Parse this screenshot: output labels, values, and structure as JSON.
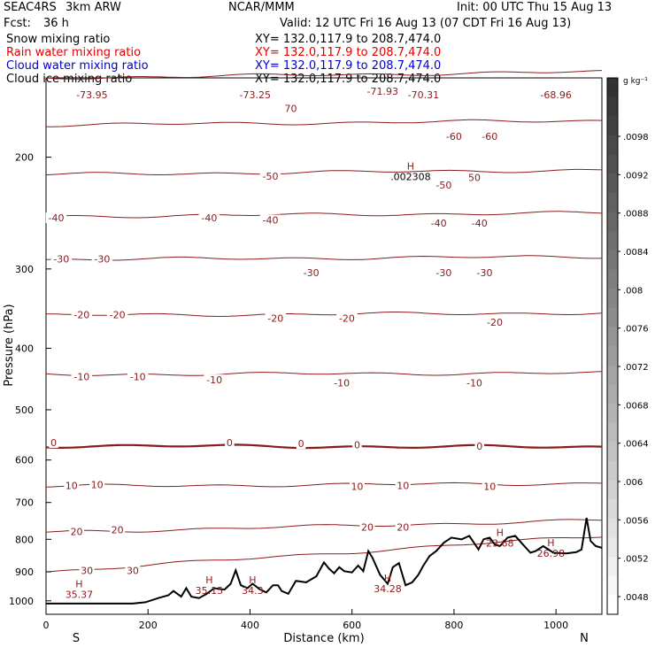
{
  "header": {
    "project": "SEAC4RS",
    "model": "3km ARW",
    "org": "NCAR/MMM",
    "init": "Init: 00 UTC Thu 15 Aug 13",
    "fcst_label": "Fcst:",
    "fcst_value": "36 h",
    "valid": "Valid: 12 UTC Fri 16 Aug 13 (07 CDT Fri 16 Aug 13)"
  },
  "fields": [
    {
      "name": "Snow mixing ratio",
      "xy": "XY= 132.0,117.9 to 208.7,474.0",
      "color": "#000000"
    },
    {
      "name": "Rain water mixing ratio",
      "xy": "XY= 132.0,117.9 to 208.7,474.0",
      "color": "#e00000"
    },
    {
      "name": "Cloud water mixing ratio",
      "xy": "XY= 132.0,117.9 to 208.7,474.0",
      "color": "#0000cc"
    },
    {
      "name": "Cloud ice mixing ratio",
      "xy": "XY= 132.0,117.9 to 208.7,474.0",
      "color": "#000000"
    }
  ],
  "chart_data": {
    "type": "cross-section contour",
    "xlabel": "Distance (km)",
    "ylabel": "Pressure (hPa)",
    "xlim": [
      0,
      1090
    ],
    "ylim": [
      1050,
      150
    ],
    "y_scale": "log",
    "x_ticks": [
      0,
      200,
      400,
      600,
      800,
      1000
    ],
    "y_ticks": [
      200,
      300,
      400,
      500,
      600,
      700,
      800,
      900,
      1000
    ],
    "x_end_labels": {
      "left": "S",
      "right": "N"
    },
    "colorbar": {
      "units": "g kg⁻¹",
      "ticks": [
        ".0098",
        ".0092",
        ".0088",
        ".0084",
        ".008",
        ".0076",
        ".0072",
        ".0068",
        ".0064",
        ".006",
        ".0056",
        ".0052",
        ".0048"
      ]
    },
    "temperature_contours": [
      {
        "value": -70,
        "p_start": 150,
        "slope": -0.02
      },
      {
        "value": -60,
        "p_start": 178,
        "slope": -0.015
      },
      {
        "value": -50,
        "p_start": 213,
        "slope": -0.015
      },
      {
        "value": -40,
        "p_start": 248,
        "slope": -0.012
      },
      {
        "value": -30,
        "p_start": 290,
        "slope": -0.01
      },
      {
        "value": -20,
        "p_start": 355,
        "slope": -0.008
      },
      {
        "value": -10,
        "p_start": 440,
        "slope": -0.005
      },
      {
        "value": 0,
        "p_start": 570,
        "slope": 0.004
      },
      {
        "value": 10,
        "p_start": 660,
        "slope": -0.01
      },
      {
        "value": 20,
        "p_start": 780,
        "slope": -0.04
      },
      {
        "value": 30,
        "p_start": 900,
        "slope": -0.12
      }
    ],
    "contour_labels": [
      {
        "text": "-73.95",
        "x": 90,
        "p": 160
      },
      {
        "text": "-73.25",
        "x": 410,
        "p": 160
      },
      {
        "text": "-71.93",
        "x": 660,
        "p": 158
      },
      {
        "text": "-70.31",
        "x": 740,
        "p": 160
      },
      {
        "text": "-68.96",
        "x": 1000,
        "p": 160
      },
      {
        "text": "70",
        "x": 480,
        "p": 168
      },
      {
        "text": "-60",
        "x": 800,
        "p": 186
      },
      {
        "text": "-60",
        "x": 870,
        "p": 186
      },
      {
        "text": "-50",
        "x": 440,
        "p": 215
      },
      {
        "text": "-50",
        "x": 780,
        "p": 222
      },
      {
        "text": "-40",
        "x": 20,
        "p": 250
      },
      {
        "text": "-40",
        "x": 320,
        "p": 250
      },
      {
        "text": "-40",
        "x": 440,
        "p": 252
      },
      {
        "text": "-40",
        "x": 770,
        "p": 255
      },
      {
        "text": "-40",
        "x": 850,
        "p": 255
      },
      {
        "text": "-30",
        "x": 30,
        "p": 290
      },
      {
        "text": "-30",
        "x": 110,
        "p": 290
      },
      {
        "text": "-30",
        "x": 520,
        "p": 305
      },
      {
        "text": "-30",
        "x": 780,
        "p": 305
      },
      {
        "text": "-30",
        "x": 860,
        "p": 305
      },
      {
        "text": "-20",
        "x": 70,
        "p": 355
      },
      {
        "text": "-20",
        "x": 140,
        "p": 355
      },
      {
        "text": "-20",
        "x": 450,
        "p": 360
      },
      {
        "text": "-20",
        "x": 590,
        "p": 360
      },
      {
        "text": "-20",
        "x": 880,
        "p": 365
      },
      {
        "text": "-10",
        "x": 70,
        "p": 445
      },
      {
        "text": "-10",
        "x": 180,
        "p": 445
      },
      {
        "text": "-10",
        "x": 330,
        "p": 450
      },
      {
        "text": "-10",
        "x": 580,
        "p": 455
      },
      {
        "text": "-10",
        "x": 840,
        "p": 455
      },
      {
        "text": "0",
        "x": 15,
        "p": 565
      },
      {
        "text": "0",
        "x": 360,
        "p": 565
      },
      {
        "text": "0",
        "x": 500,
        "p": 567
      },
      {
        "text": "0",
        "x": 610,
        "p": 570
      },
      {
        "text": "0",
        "x": 850,
        "p": 572
      },
      {
        "text": "10",
        "x": 50,
        "p": 660
      },
      {
        "text": "10",
        "x": 100,
        "p": 658
      },
      {
        "text": "10",
        "x": 610,
        "p": 662
      },
      {
        "text": "10",
        "x": 700,
        "p": 660
      },
      {
        "text": "10",
        "x": 870,
        "p": 662
      },
      {
        "text": "20",
        "x": 60,
        "p": 780
      },
      {
        "text": "20",
        "x": 140,
        "p": 775
      },
      {
        "text": "20",
        "x": 630,
        "p": 768
      },
      {
        "text": "20",
        "x": 700,
        "p": 768
      },
      {
        "text": "30",
        "x": 80,
        "p": 898
      },
      {
        "text": "30",
        "x": 170,
        "p": 898
      },
      {
        "text": "50",
        "x": 840,
        "p": 216
      }
    ],
    "extrema": [
      {
        "letter": "H",
        "value": ".002308",
        "x": 715,
        "p": 212
      },
      {
        "letter": "H",
        "value": "35.37",
        "x": 65,
        "p": 965
      },
      {
        "letter": "H",
        "value": "35.15",
        "x": 320,
        "p": 950
      },
      {
        "letter": "H",
        "value": "34.3",
        "x": 405,
        "p": 950
      },
      {
        "letter": "H",
        "value": "34.28",
        "x": 670,
        "p": 945
      },
      {
        "letter": "H",
        "value": "23.68",
        "x": 890,
        "p": 800
      },
      {
        "letter": "H",
        "value": "26.98",
        "x": 990,
        "p": 830
      }
    ],
    "terrain": {
      "x": [
        0,
        170,
        195,
        220,
        240,
        250,
        265,
        275,
        285,
        300,
        315,
        330,
        350,
        362,
        372,
        382,
        395,
        405,
        420,
        432,
        445,
        455,
        462,
        475,
        490,
        510,
        530,
        545,
        555,
        565,
        575,
        585,
        600,
        612,
        622,
        632,
        640,
        655,
        670,
        680,
        692,
        705,
        718,
        730,
        740,
        752,
        765,
        780,
        795,
        815,
        830,
        848,
        858,
        870,
        880,
        890,
        905,
        920,
        935,
        950,
        960,
        975,
        995,
        1020,
        1040,
        1050,
        1060,
        1068,
        1078,
        1090
      ],
      "p": [
        1010,
        1010,
        1005,
        990,
        980,
        965,
        985,
        955,
        985,
        990,
        975,
        955,
        960,
        940,
        895,
        945,
        955,
        940,
        960,
        970,
        945,
        945,
        965,
        975,
        930,
        935,
        915,
        870,
        890,
        905,
        885,
        898,
        902,
        880,
        898,
        835,
        855,
        910,
        940,
        885,
        872,
        945,
        935,
        910,
        880,
        850,
        835,
        810,
        795,
        800,
        790,
        830,
        800,
        795,
        815,
        820,
        795,
        790,
        815,
        840,
        835,
        820,
        840,
        842,
        838,
        830,
        740,
        805,
        820,
        825
      ]
    }
  }
}
